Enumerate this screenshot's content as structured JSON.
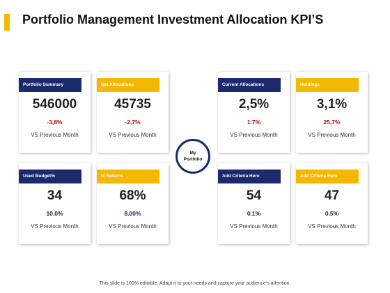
{
  "title": "Portfolio Management Investment Allocation KPI’S",
  "center": {
    "label": "My\nPortfolio"
  },
  "cards": [
    {
      "header": "Portfolio Summary",
      "header_color": "#1a2a6c",
      "value": "546000",
      "change": "-3,8%",
      "change_color": "#c00000",
      "sub": "VS Previous Month"
    },
    {
      "header": "Net Allocations",
      "header_color": "#f5b800",
      "value": "45735",
      "change": "-2,7%",
      "change_color": "#c00000",
      "sub": "VS Previous Month"
    },
    {
      "header": "Current Allocations",
      "header_color": "#1a2a6c",
      "value": "2,5%",
      "change": "1.7%",
      "change_color": "#c00000",
      "sub": "VS Previous Month"
    },
    {
      "header": "Holdings",
      "header_color": "#f5b800",
      "value": "3,1%",
      "change": "25,7%",
      "change_color": "#c00000",
      "sub": "VS Previous Month"
    },
    {
      "header": "Used Budget%",
      "header_color": "#1a2a6c",
      "value": "34",
      "change": "10.0%",
      "change_color": "#222222",
      "sub": "VS Previous Month"
    },
    {
      "header": "% Returns",
      "header_color": "#f5b800",
      "value": "68%",
      "change": "8.00%",
      "change_color": "#1a2a6c",
      "sub": "VS Previous Month"
    },
    {
      "header": "Add Criteria Here",
      "header_color": "#1a2a6c",
      "value": "54",
      "change": "0.1%",
      "change_color": "#222222",
      "sub": "VS Previous Month"
    },
    {
      "header": "Add Criteria Here",
      "header_color": "#f5b800",
      "value": "47",
      "change": "0.5%",
      "change_color": "#222222",
      "sub": "VS Previous Month"
    }
  ],
  "footer": "This slide is 100% editable. Adapt it to your needs and capture your audience’s attention."
}
